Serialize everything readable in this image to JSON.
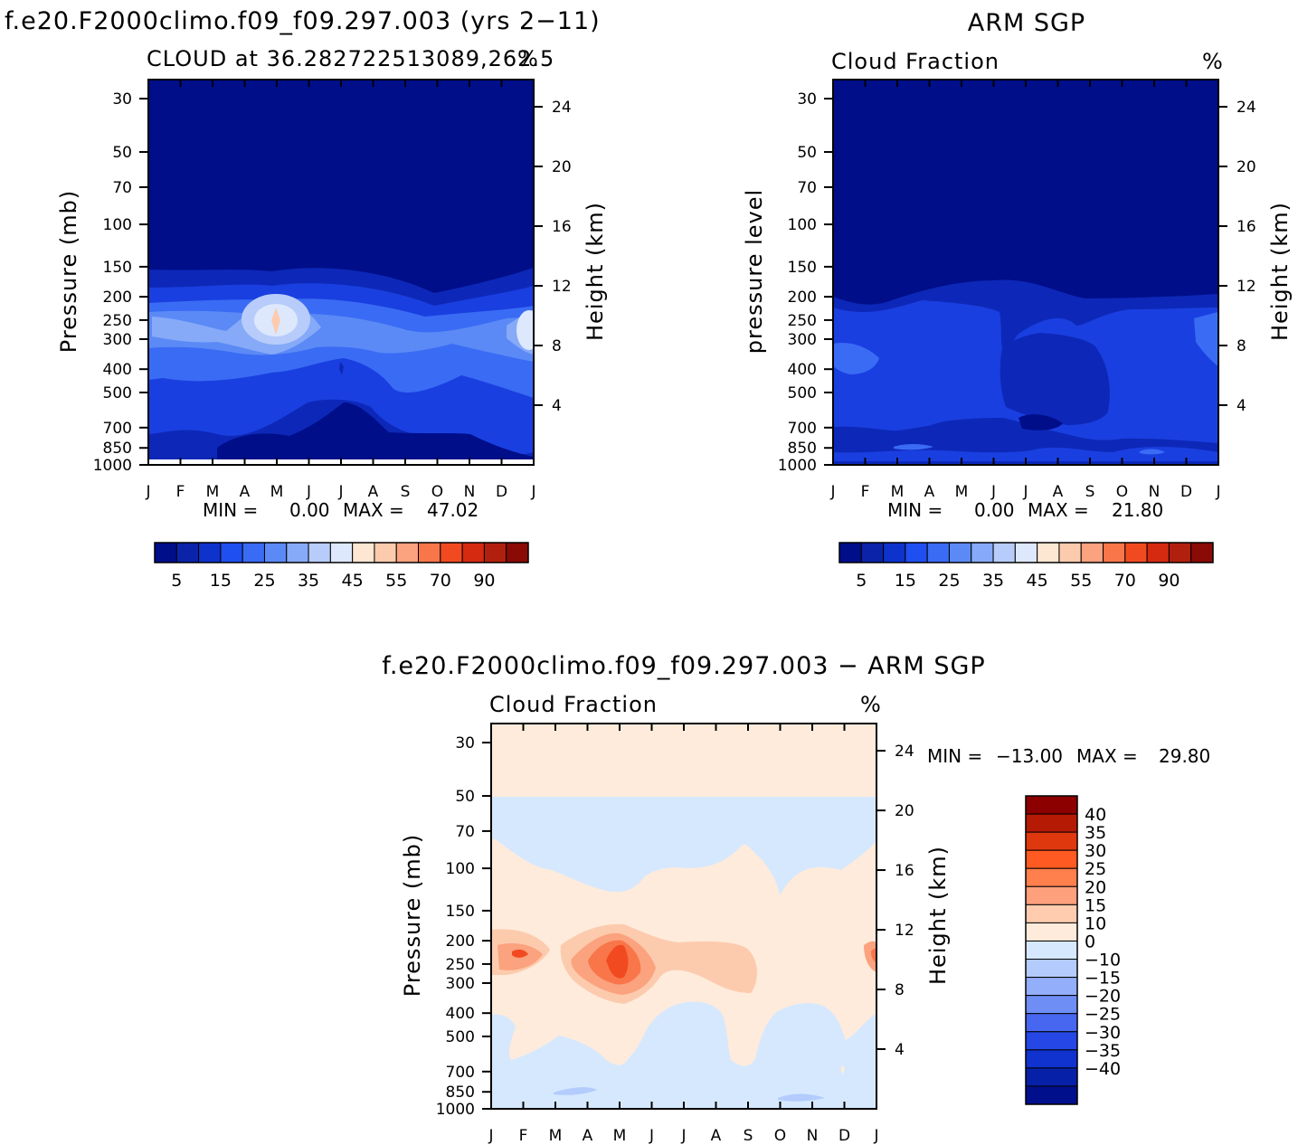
{
  "chart_data": [
    {
      "type": "heatmap",
      "title": "f.e20.F2000climo.f09_f09.297.003 (yrs 2−11)",
      "subtitle_left": "CLOUD at 36.282722513089,262.5",
      "units": "%",
      "xlabel": "",
      "ylabel": "Pressure (mb)",
      "y2label": "Height (km)",
      "months": [
        "J",
        "F",
        "M",
        "A",
        "M",
        "J",
        "J",
        "A",
        "S",
        "O",
        "N",
        "D",
        "J"
      ],
      "pressure_ticks": [
        30,
        50,
        70,
        100,
        150,
        200,
        250,
        300,
        400,
        500,
        700,
        850,
        1000
      ],
      "height_ticks": [
        24,
        20,
        16,
        12,
        8,
        4
      ],
      "stats": {
        "min_label": "MIN =",
        "min": "0.00",
        "max_label": "MAX =",
        "max": "47.02"
      },
      "colorbar_labels": [
        "5",
        "15",
        "25",
        "35",
        "45",
        "55",
        "70",
        "90"
      ],
      "features": [
        {
          "name": "upper-tropospheric cloud maximum",
          "month_index": 4,
          "pressure_mb": 250,
          "value_pct": 47
        },
        {
          "name": "mid-level cloud layer",
          "pressure_range_mb": [
            150,
            500
          ],
          "value_range_pct": [
            10,
            35
          ]
        }
      ]
    },
    {
      "type": "heatmap",
      "title": "ARM SGP",
      "subtitle_left": "Cloud Fraction",
      "units": "%",
      "ylabel": "pressure level",
      "y2label": "Height (km)",
      "months": [
        "J",
        "F",
        "M",
        "A",
        "M",
        "J",
        "J",
        "A",
        "S",
        "O",
        "N",
        "D",
        "J"
      ],
      "pressure_ticks": [
        30,
        50,
        70,
        100,
        150,
        200,
        250,
        300,
        400,
        500,
        700,
        850,
        1000
      ],
      "height_ticks": [
        24,
        20,
        16,
        12,
        8,
        4
      ],
      "stats": {
        "min_label": "MIN =",
        "min": "0.00",
        "max_label": "MAX =",
        "max": "21.80"
      },
      "colorbar_labels": [
        "5",
        "15",
        "25",
        "35",
        "45",
        "55",
        "70",
        "90"
      ],
      "features": [
        {
          "name": "cloud layer",
          "pressure_range_mb": [
            200,
            850
          ],
          "value_range_pct": [
            5,
            22
          ]
        }
      ]
    },
    {
      "type": "heatmap",
      "title": "f.e20.F2000climo.f09_f09.297.003 − ARM SGP",
      "subtitle_left": "Cloud Fraction",
      "units": "%",
      "ylabel": "Pressure (mb)",
      "y2label": "Height (km)",
      "months": [
        "J",
        "F",
        "M",
        "A",
        "M",
        "J",
        "J",
        "A",
        "S",
        "O",
        "N",
        "D",
        "J"
      ],
      "pressure_ticks": [
        30,
        50,
        70,
        100,
        150,
        200,
        250,
        300,
        400,
        500,
        700,
        850,
        1000
      ],
      "height_ticks": [
        24,
        20,
        16,
        12,
        8,
        4
      ],
      "stats": {
        "min_label": "MIN =",
        "min": "−13.00",
        "max_label": "MAX =",
        "max": "29.80"
      },
      "colorbar_labels": [
        "40",
        "35",
        "30",
        "25",
        "20",
        "15",
        "10",
        "0",
        "−10",
        "−15",
        "−20",
        "−25",
        "−30",
        "−35",
        "−40"
      ],
      "features": [
        {
          "name": "positive bias maximum",
          "month_index": 4,
          "pressure_mb": 250,
          "value_pct": 29.8
        },
        {
          "name": "negative bias region",
          "pressure_range_mb": [
            400,
            1000
          ],
          "value_range_pct": [
            -13,
            0
          ]
        }
      ]
    }
  ],
  "colors": {
    "seq_palette": [
      "#000E8A",
      "#0A23A8",
      "#0D33CC",
      "#1F4FF0",
      "#3A6BF4",
      "#5B8AF6",
      "#86AAF8",
      "#B7CCFA",
      "#DDE8FC",
      "#FDE6D2",
      "#FCCBAE",
      "#FBA27E",
      "#F8764A",
      "#F24A20",
      "#D62A10",
      "#B1200E",
      "#8A0A06"
    ],
    "diff_palette": [
      "#8C0000",
      "#B51A05",
      "#E0380E",
      "#FF5A22",
      "#FF7F4D",
      "#FFA07D",
      "#FFCCAF",
      "#FEEBDB",
      "#D6E8FE",
      "#B3CCFD",
      "#93AEFA",
      "#6E8EF6",
      "#4867F1",
      "#2547E6",
      "#1032CF",
      "#0620A8",
      "#00108C"
    ]
  }
}
